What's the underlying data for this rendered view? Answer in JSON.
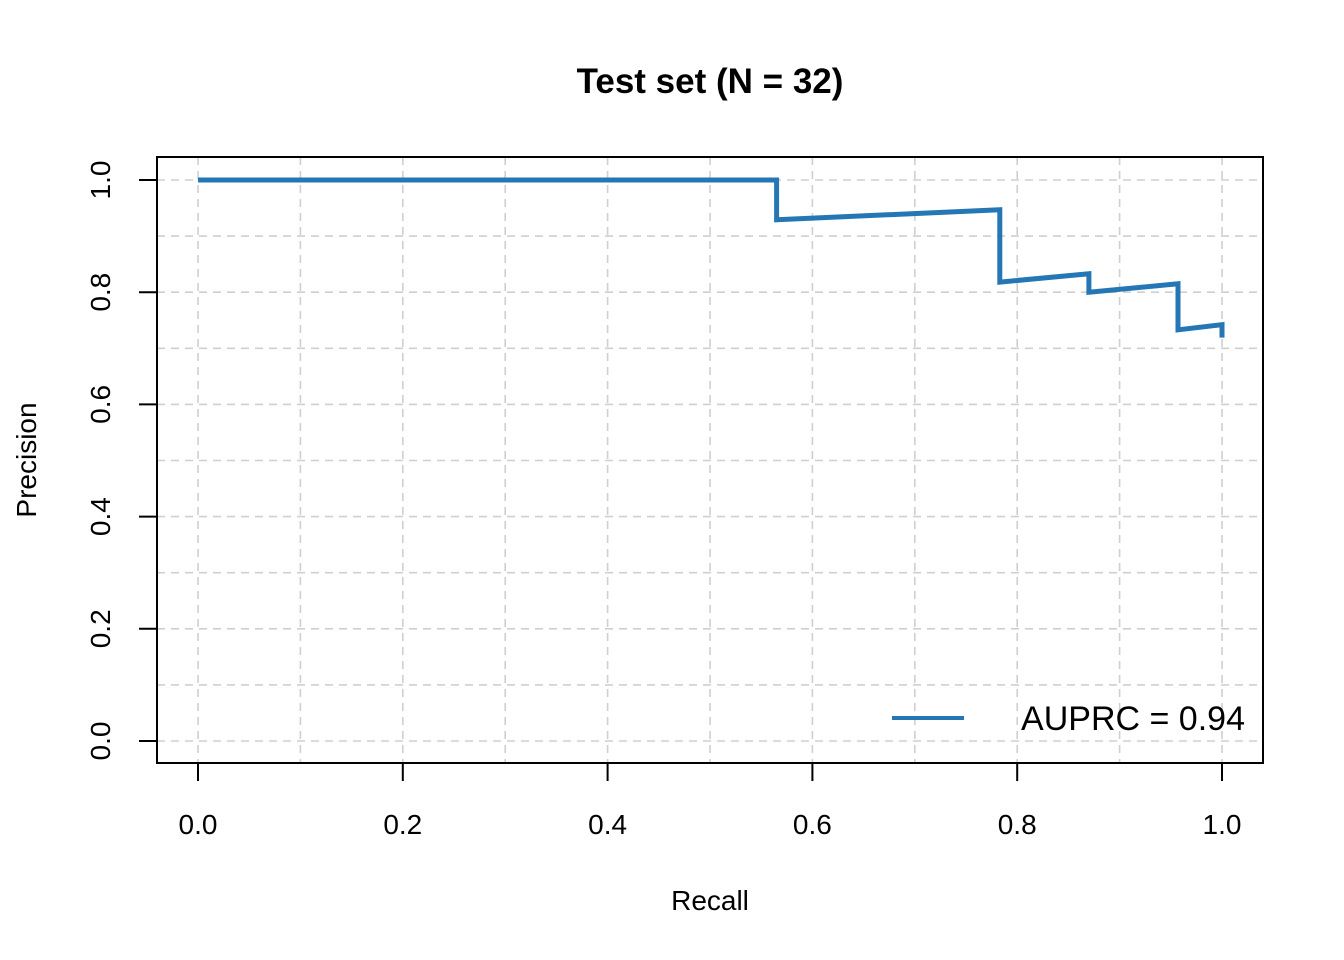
{
  "chart_data": {
    "type": "line",
    "title": "Test set (N = 32)",
    "xlabel": "Recall",
    "ylabel": "Precision",
    "xlim": [
      0.0,
      1.0
    ],
    "ylim": [
      0.0,
      1.0
    ],
    "x_ticks": [
      "0.0",
      "0.2",
      "0.4",
      "0.6",
      "0.8",
      "1.0"
    ],
    "y_ticks": [
      "0.0",
      "0.2",
      "0.4",
      "0.6",
      "0.8",
      "1.0"
    ],
    "grid": true,
    "legend_position": "bottom-right",
    "series": [
      {
        "name": "AUPRC = 0.94",
        "color": "#2477b4",
        "points": [
          [
            0.0,
            1.0
          ],
          [
            0.565,
            1.0
          ],
          [
            0.565,
            0.929
          ],
          [
            0.783,
            0.947
          ],
          [
            0.783,
            0.818
          ],
          [
            0.87,
            0.833
          ],
          [
            0.87,
            0.8
          ],
          [
            0.957,
            0.815
          ],
          [
            0.957,
            0.733
          ],
          [
            1.0,
            0.742
          ],
          [
            1.0,
            0.719
          ]
        ]
      }
    ]
  }
}
